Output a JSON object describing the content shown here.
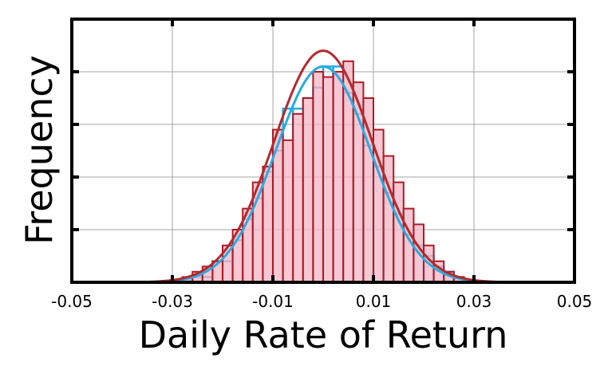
{
  "chart_data": {
    "type": "histogram",
    "xlabel": "Daily Rate of Return",
    "ylabel": "Frequency",
    "xlim": [
      -0.05,
      0.05
    ],
    "ylim": [
      0,
      50
    ],
    "x_ticks": [
      -0.05,
      -0.03,
      -0.01,
      0.01,
      0.03,
      0.05
    ],
    "x_tick_labels": [
      "-0.05",
      "-0.03",
      "-0.01",
      "0.01",
      "0.03",
      "0.05"
    ],
    "y_ticks": [
      0,
      10,
      20,
      30,
      40,
      50
    ],
    "grid": true,
    "bin_width": 0.002,
    "series": [
      {
        "kind": "hist",
        "style": "step-outline",
        "color": "#29abe2",
        "bin_starts": [
          -0.03,
          -0.028,
          -0.026,
          -0.024,
          -0.022,
          -0.02,
          -0.018,
          -0.016,
          -0.014,
          -0.012,
          -0.01,
          -0.008,
          -0.006,
          -0.004,
          -0.002,
          0.0,
          0.002,
          0.004,
          0.006,
          0.008,
          0.01,
          0.012,
          0.014,
          0.016,
          0.018,
          0.02,
          0.022,
          0.024,
          0.026,
          0.028
        ],
        "counts": [
          0.3,
          0.5,
          1,
          1,
          4,
          4,
          8,
          12,
          16,
          21,
          25,
          33,
          33,
          35,
          37,
          41,
          41,
          36,
          32,
          26,
          22,
          17,
          13,
          9,
          7,
          5,
          3,
          2,
          1,
          0.4
        ]
      },
      {
        "kind": "hist",
        "style": "filled",
        "color": "#b01a24",
        "fill": "#f4b6c4",
        "bin_starts": [
          -0.032,
          -0.03,
          -0.028,
          -0.026,
          -0.024,
          -0.022,
          -0.02,
          -0.018,
          -0.016,
          -0.014,
          -0.012,
          -0.01,
          -0.008,
          -0.006,
          -0.004,
          -0.002,
          0.0,
          0.002,
          0.004,
          0.006,
          0.008,
          0.01,
          0.012,
          0.014,
          0.016,
          0.018,
          0.02,
          0.022,
          0.024,
          0.026,
          0.028
        ],
        "counts": [
          0.3,
          0.5,
          1,
          2,
          3,
          4,
          7,
          10,
          14,
          19,
          22,
          29,
          27,
          32,
          35,
          40,
          39,
          40,
          42,
          38,
          35,
          29,
          24,
          19,
          14,
          11,
          7,
          4,
          2,
          1,
          0.3
        ]
      },
      {
        "kind": "line",
        "style": "normal-fit",
        "color": "#29abe2",
        "mean": 0.0,
        "sd": 0.0095,
        "peak": 41
      },
      {
        "kind": "line",
        "style": "normal-fit",
        "color": "#b22a2e",
        "mean": 0.0,
        "sd": 0.0098,
        "peak": 44
      }
    ]
  }
}
